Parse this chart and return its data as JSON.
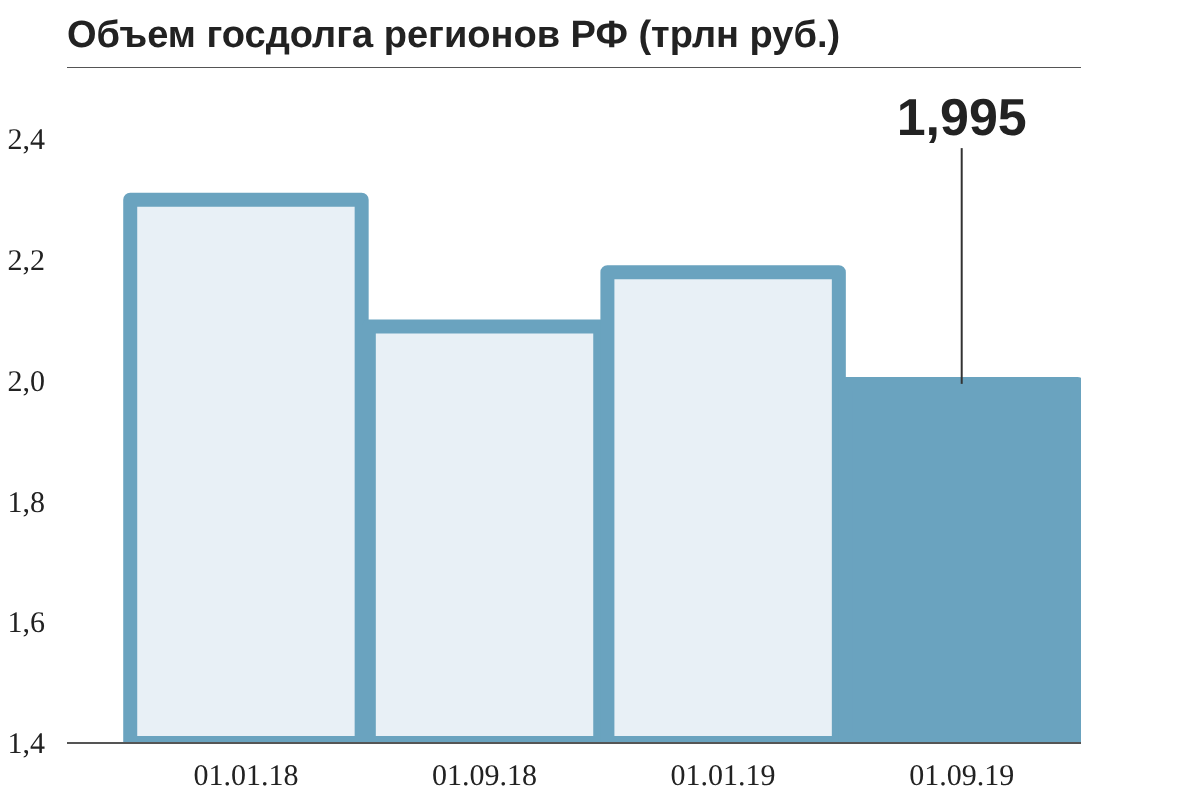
{
  "chart_data": {
    "type": "bar",
    "title": "Объем госдолга регионов РФ (трлн руб.)",
    "categories": [
      "01.01.18",
      "01.09.18",
      "01.01.19",
      "01.09.19"
    ],
    "values": [
      2.3,
      2.09,
      2.18,
      1.995
    ],
    "color": "#6aa3bf",
    "colors": [
      "#e8f0f6",
      "#e8f0f6",
      "#e8f0f6",
      "#6aa3bf"
    ],
    "annotations": [
      {
        "text": "1,995",
        "x": "01.09.19",
        "y": 1.995
      }
    ],
    "ylim": [
      1.4,
      2.52
    ],
    "yticks": [
      {
        "value": 1.4,
        "label": "1,4"
      },
      {
        "value": 1.6,
        "label": "1,6"
      },
      {
        "value": 1.8,
        "label": "1,8"
      },
      {
        "value": 2.0,
        "label": "2,0"
      },
      {
        "value": 2.2,
        "label": "2,2"
      },
      {
        "value": 2.4,
        "label": "2,4"
      }
    ],
    "grid": false
  }
}
